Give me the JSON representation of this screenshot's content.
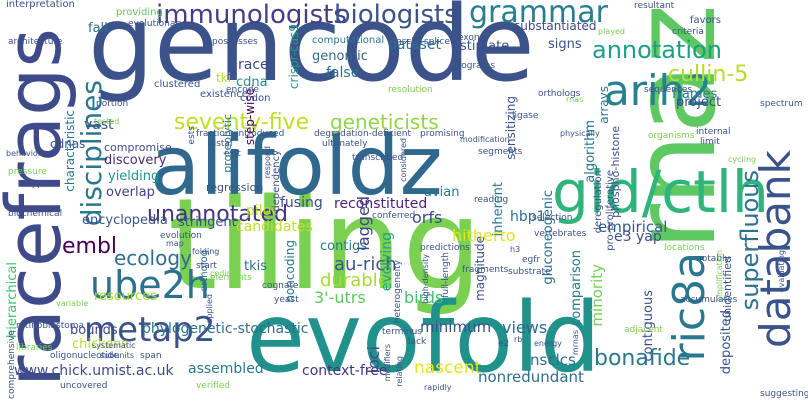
{
  "words": [
    {
      "text": "gencode",
      "color": "#3b528b"
    },
    {
      "text": "tiling",
      "color": "#7ad151"
    },
    {
      "text": "rnaz",
      "color": "#5ec962"
    },
    {
      "text": "racefrags",
      "color": "#3e4a89"
    },
    {
      "text": "alifoldz",
      "color": "#31688e"
    },
    {
      "text": "evofold",
      "color": "#21918c"
    },
    {
      "text": "gid/ctlh",
      "color": "#2fb47c"
    },
    {
      "text": "databank",
      "color": "#3b528b"
    },
    {
      "text": "ric8a",
      "color": "#2a788e"
    },
    {
      "text": "arih2",
      "color": "#26828e"
    },
    {
      "text": "immunologists",
      "color": "#433e85"
    },
    {
      "text": "biologists",
      "color": "#3b528b"
    },
    {
      "text": "grammar",
      "color": "#277f8e"
    },
    {
      "text": "annotation",
      "color": "#1f9e89"
    },
    {
      "text": "cullin-5",
      "color": "#b5de2b"
    },
    {
      "text": "ube2h",
      "color": "#2c728e"
    },
    {
      "text": "metap2",
      "color": "#3b528b"
    },
    {
      "text": "disciplines",
      "color": "#2a788e"
    },
    {
      "text": "seventy-five",
      "color": "#bddf26"
    },
    {
      "text": "geneticists",
      "color": "#90d743"
    },
    {
      "text": "superfluous",
      "color": "#2c728e"
    },
    {
      "text": "unannotated",
      "color": "#46327e"
    },
    {
      "text": "embl",
      "color": "#440154"
    },
    {
      "text": "ecology",
      "color": "#2e6f8e"
    },
    {
      "text": "bonafide",
      "color": "#2a788e"
    },
    {
      "text": "phylogenetic-stochastic",
      "color": "#2d708e"
    },
    {
      "text": "www.chick.umist.ac.uk",
      "color": "#3e4a89"
    },
    {
      "text": "nonredundant",
      "color": "#2d708e"
    },
    {
      "text": "nascent",
      "color": "#e5e419"
    },
    {
      "text": "context-free",
      "color": "#46337f"
    },
    {
      "text": "assembled",
      "color": "#2a788e"
    },
    {
      "text": "nsclcs",
      "color": "#2e6e8e"
    },
    {
      "text": "loci",
      "color": "#3e4a89"
    },
    {
      "text": "views",
      "color": "#2f6b8e"
    },
    {
      "text": "minimum",
      "color": "#3b518b"
    },
    {
      "text": "durable",
      "color": "#a8db34"
    },
    {
      "text": "au-rich",
      "color": "#3b528b"
    },
    {
      "text": "3'-utrs",
      "color": "#5ec962"
    },
    {
      "text": "birds",
      "color": "#44bf70"
    },
    {
      "text": "minority",
      "color": "#75d054"
    },
    {
      "text": "hitherto",
      "color": "#e5e419"
    },
    {
      "text": "e3 yap",
      "color": "#3e4c8a"
    },
    {
      "text": "empirical",
      "color": "#365c8d"
    },
    {
      "text": "hbp1",
      "color": "#2e6e8e"
    },
    {
      "text": "orfs",
      "color": "#3e4989"
    },
    {
      "text": "reconstituted",
      "color": "#482576"
    },
    {
      "text": "fusing",
      "color": "#3e4a89"
    },
    {
      "text": "pilot",
      "color": "#b8de29"
    },
    {
      "text": "overlap",
      "color": "#414487"
    },
    {
      "text": "discovery",
      "color": "#472c7a"
    },
    {
      "text": "yielding",
      "color": "#1f988b"
    },
    {
      "text": "encyclopedia",
      "color": "#3b528b"
    },
    {
      "text": "stringent",
      "color": "#3b528b"
    },
    {
      "text": "candidates",
      "color": "#c2df23"
    },
    {
      "text": "contigs",
      "color": "#2a788e"
    },
    {
      "text": "lagged",
      "color": "#414487"
    },
    {
      "text": "evolving",
      "color": "#20a386"
    },
    {
      "text": "noncoding",
      "color": "#2a778e"
    },
    {
      "text": "tkis",
      "color": "#2d718e"
    },
    {
      "text": "resources",
      "color": "#a5db36"
    },
    {
      "text": "bounds",
      "color": "#404688"
    },
    {
      "text": "chickens",
      "color": "#b5de2b"
    },
    {
      "text": "characteristic",
      "color": "#2a788e"
    },
    {
      "text": "vast",
      "color": "#3b528b"
    },
    {
      "text": "fall",
      "color": "#2c728e"
    },
    {
      "text": "race",
      "color": "#3e4a89"
    },
    {
      "text": "cdna",
      "color": "#21918c"
    },
    {
      "text": "tki",
      "color": "#b8de29"
    },
    {
      "text": "step-wise",
      "color": "#440154"
    },
    {
      "text": "genomic",
      "color": "#31688e"
    },
    {
      "text": "false",
      "color": "#2c728e"
    },
    {
      "text": "dataset",
      "color": "#2d708e"
    },
    {
      "text": "estimate",
      "color": "#3b528b"
    },
    {
      "text": "signs",
      "color": "#3b528b"
    },
    {
      "text": "substantiated",
      "color": "#3e4a89"
    },
    {
      "text": "frames",
      "color": "#2a788e"
    },
    {
      "text": "arrays",
      "color": "#2a788e"
    },
    {
      "text": "project",
      "color": "#3e4989"
    },
    {
      "text": "crispr-cas9",
      "color": "#1f9e89"
    },
    {
      "text": "sensitizing",
      "color": "#3b528b"
    },
    {
      "text": "inherent",
      "color": "#2a788e"
    },
    {
      "text": "gluconeogenic",
      "color": "#2c728e"
    },
    {
      "text": "magnitude",
      "color": "#3b528b"
    },
    {
      "text": "algorithm",
      "color": "#2a788e"
    },
    {
      "text": "deposited",
      "color": "#3b528b"
    },
    {
      "text": "comparison",
      "color": "#2a788e"
    },
    {
      "text": "contiguous",
      "color": "#3b528b"
    },
    {
      "text": "unidentified",
      "color": "#3b528b"
    },
    {
      "text": "avian",
      "color": "#2a788e"
    },
    {
      "text": "hierarchical",
      "color": "#44bf70"
    },
    {
      "text": "cdnas",
      "color": "#3b528b"
    },
    {
      "text": "compromise",
      "color": "#3e4a89"
    },
    {
      "text": "regression",
      "color": "#3b528b"
    },
    {
      "text": "dependency",
      "color": "#3b528b"
    },
    {
      "text": "proteolytic",
      "color": "#2a788e"
    },
    {
      "text": "clustered",
      "color": "#3b528b"
    },
    {
      "text": "existence",
      "color": "#3b528b"
    },
    {
      "text": "codon",
      "color": "#3b528b"
    },
    {
      "text": "ortholog",
      "color": "#2c728e"
    },
    {
      "text": "phospho-histone",
      "color": "#3b528b"
    },
    {
      "text": "deregulation",
      "color": "#3b528b"
    },
    {
      "text": "pro-proliferative",
      "color": "#3b528b"
    },
    {
      "text": "interpretation",
      "color": "#3b528b"
    },
    {
      "text": "providing",
      "color": "#5ec962"
    },
    {
      "text": "evolutionary",
      "color": "#3b528b"
    },
    {
      "text": "possesses",
      "color": "#3b528b"
    },
    {
      "text": "computational",
      "color": "#2a788e"
    },
    {
      "text": "nsclc",
      "color": "#3b528b"
    },
    {
      "text": "splice",
      "color": "#3b528b"
    },
    {
      "text": "exons",
      "color": "#3b528b"
    },
    {
      "text": "resultant",
      "color": "#3b528b"
    },
    {
      "text": "favors",
      "color": "#3b528b"
    },
    {
      "text": "criteria",
      "color": "#3b528b"
    },
    {
      "text": "played",
      "color": "#7ad151"
    },
    {
      "text": "architecture",
      "color": "#3b528b"
    },
    {
      "text": "programs",
      "color": "#3b528b"
    },
    {
      "text": "sequences",
      "color": "#3b528b"
    },
    {
      "text": "resolution",
      "color": "#7ad151"
    },
    {
      "text": "encode",
      "color": "#3b528b"
    },
    {
      "text": "portion",
      "color": "#3b528b"
    },
    {
      "text": "tested",
      "color": "#7ad151"
    },
    {
      "text": "rnas",
      "color": "#7ad151"
    },
    {
      "text": "ligase",
      "color": "#3b528b"
    },
    {
      "text": "spectrum",
      "color": "#3b528b"
    },
    {
      "text": "internal",
      "color": "#3b528b"
    },
    {
      "text": "limit",
      "color": "#3b528b"
    },
    {
      "text": "cycling",
      "color": "#7ad151"
    },
    {
      "text": "fraction",
      "color": "#3b528b"
    },
    {
      "text": "introduced",
      "color": "#3b528b"
    },
    {
      "text": "degradation-deficient",
      "color": "#3b528b"
    },
    {
      "text": "promising",
      "color": "#3b528b"
    },
    {
      "text": "distal",
      "color": "#3b528b"
    },
    {
      "text": "exit",
      "color": "#3b528b"
    },
    {
      "text": "ultimately",
      "color": "#3b528b"
    },
    {
      "text": "modification",
      "color": "#3b528b"
    },
    {
      "text": "segments",
      "color": "#3b528b"
    },
    {
      "text": "physically",
      "color": "#3b528b"
    },
    {
      "text": "organisms",
      "color": "#7ad151"
    },
    {
      "text": "behavior",
      "color": "#3b528b"
    },
    {
      "text": "pressure",
      "color": "#7ad151"
    },
    {
      "text": "upper",
      "color": "#3b528b"
    },
    {
      "text": "biochemical",
      "color": "#3b528b"
    },
    {
      "text": "ests",
      "color": "#3b528b"
    },
    {
      "text": "respond",
      "color": "#3b528b"
    },
    {
      "text": "transcribed",
      "color": "#3b528b"
    },
    {
      "text": "considered",
      "color": "#3b528b"
    },
    {
      "text": "reading",
      "color": "#3b528b"
    },
    {
      "text": "conferred",
      "color": "#3b528b"
    },
    {
      "text": "selection",
      "color": "#3b528b"
    },
    {
      "text": "vertebrates",
      "color": "#3b528b"
    },
    {
      "text": "predictions",
      "color": "#3b528b"
    },
    {
      "text": "evolution",
      "color": "#3b528b"
    },
    {
      "text": "folding",
      "color": "#3b528b"
    },
    {
      "text": "map",
      "color": "#3b528b"
    },
    {
      "text": "start",
      "color": "#3b528b"
    },
    {
      "text": "comprehensive",
      "color": "#3b528b"
    },
    {
      "text": "variable",
      "color": "#7ad151"
    },
    {
      "text": "retinoblastoma",
      "color": "#3b528b"
    },
    {
      "text": "coding",
      "color": "#7ad151"
    },
    {
      "text": "cognate",
      "color": "#3b528b"
    },
    {
      "text": "yeast",
      "color": "#3b528b"
    },
    {
      "text": "h3",
      "color": "#3b528b"
    },
    {
      "text": "egfr",
      "color": "#3b528b"
    },
    {
      "text": "substrate",
      "color": "#3b528b"
    },
    {
      "text": "heterogeneity",
      "color": "#3b528b"
    },
    {
      "text": "full-length",
      "color": "#3b528b"
    },
    {
      "text": "high-density",
      "color": "#3b528b"
    },
    {
      "text": "fragments",
      "color": "#3b528b"
    },
    {
      "text": "notably",
      "color": "#3b528b"
    },
    {
      "text": "locations",
      "color": "#7ad151"
    },
    {
      "text": "evaluating",
      "color": "#3b528b"
    },
    {
      "text": "accumulates",
      "color": "#3b528b"
    },
    {
      "text": "amplification",
      "color": "#7ad151"
    },
    {
      "text": "adjacent",
      "color": "#7ad151"
    },
    {
      "text": "systematic",
      "color": "#3b528b"
    },
    {
      "text": "subunits",
      "color": "#3b528b"
    },
    {
      "text": "libraries",
      "color": "#7ad151"
    },
    {
      "text": "oligonucleotide",
      "color": "#3b528b"
    },
    {
      "text": "span",
      "color": "#3b528b"
    },
    {
      "text": "uncovered",
      "color": "#3b528b"
    },
    {
      "text": "verified",
      "color": "#7ad151"
    },
    {
      "text": "terminus",
      "color": "#3b528b"
    },
    {
      "text": "lack",
      "color": "#3b528b"
    },
    {
      "text": "modifiers",
      "color": "#3b528b"
    },
    {
      "text": "relating",
      "color": "#3b528b"
    },
    {
      "text": "rapidly",
      "color": "#3b528b"
    },
    {
      "text": "e2",
      "color": "#3b528b"
    },
    {
      "text": "rb",
      "color": "#3b528b"
    },
    {
      "text": "energy",
      "color": "#3b528b"
    },
    {
      "text": "mrnas",
      "color": "#3b528b"
    },
    {
      "text": "suggesting",
      "color": "#3b528b"
    },
    {
      "text": "elements",
      "color": "#7ad151"
    },
    {
      "text": "applied",
      "color": "#3b528b"
    },
    {
      "text": "orthologs",
      "color": "#3b528b"
    },
    {
      "text": "ubiquitinated",
      "color": "#3b528b"
    }
  ]
}
